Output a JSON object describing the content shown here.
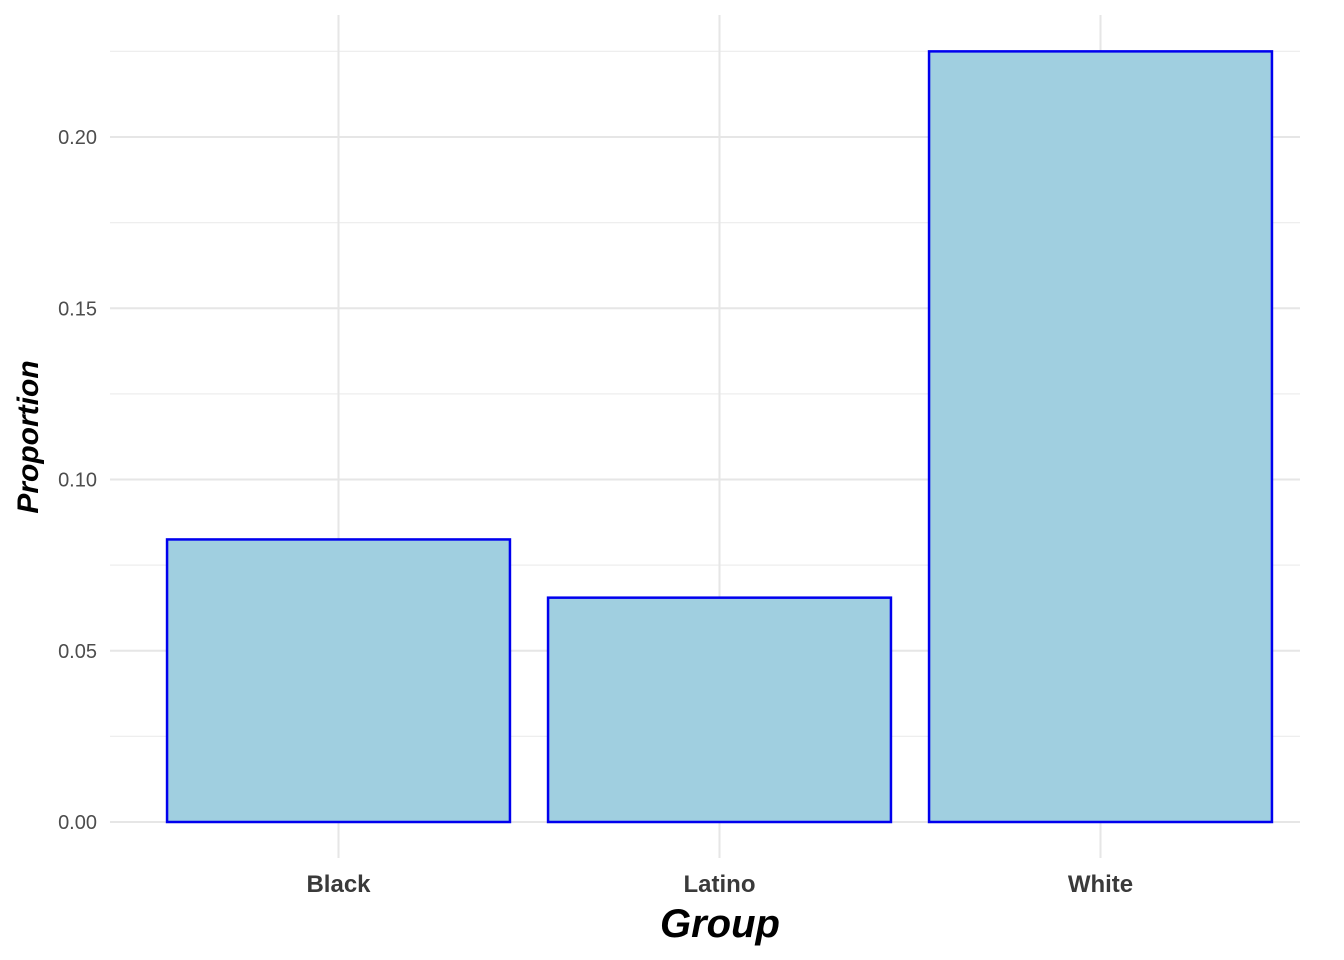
{
  "chart_data": {
    "type": "bar",
    "categories": [
      "Black",
      "Latino",
      "White"
    ],
    "values": [
      0.0825,
      0.0655,
      0.225
    ],
    "xlabel": "Group",
    "ylabel": "Proportion",
    "ylim": [
      0,
      0.235
    ],
    "yticks": [
      0.0,
      0.05,
      0.1,
      0.15,
      0.2
    ],
    "ytick_labels": [
      "0.00",
      "0.05",
      "0.10",
      "0.15",
      "0.20"
    ],
    "grid": true,
    "legend": "none",
    "bar_fill": "#a0cfe0",
    "bar_outline": "#0000ee"
  }
}
